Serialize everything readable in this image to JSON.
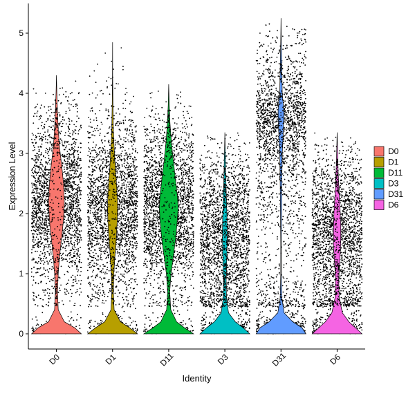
{
  "chart_data": {
    "type": "violin",
    "title": "",
    "xlabel": "Identity",
    "ylabel": "Expression Level",
    "ylim": [
      -0.3,
      5.5
    ],
    "yticks": [
      0,
      1,
      2,
      3,
      4,
      5
    ],
    "grid": false,
    "legend_position": "right",
    "categories": [
      "D0",
      "D1",
      "D11",
      "D3",
      "D31",
      "D6"
    ],
    "series": [
      {
        "name": "D0",
        "color": "#F8766D",
        "max": 4.3,
        "density": [
          [
            0,
            0.95
          ],
          [
            0.1,
            0.7
          ],
          [
            0.2,
            0.3
          ],
          [
            0.4,
            0.07
          ],
          [
            0.7,
            0.04
          ],
          [
            1,
            0.07
          ],
          [
            1.3,
            0.12
          ],
          [
            1.6,
            0.2
          ],
          [
            1.9,
            0.27
          ],
          [
            2.2,
            0.3
          ],
          [
            2.5,
            0.27
          ],
          [
            2.8,
            0.2
          ],
          [
            3.1,
            0.12
          ],
          [
            3.4,
            0.07
          ],
          [
            3.7,
            0.04
          ],
          [
            4,
            0.015
          ],
          [
            4.3,
            0
          ]
        ]
      },
      {
        "name": "D1",
        "color": "#B79F00",
        "max": 4.85,
        "density": [
          [
            0,
            0.95
          ],
          [
            0.1,
            0.65
          ],
          [
            0.2,
            0.3
          ],
          [
            0.4,
            0.06
          ],
          [
            0.7,
            0.03
          ],
          [
            1,
            0.05
          ],
          [
            1.3,
            0.09
          ],
          [
            1.6,
            0.14
          ],
          [
            1.9,
            0.18
          ],
          [
            2.2,
            0.19
          ],
          [
            2.5,
            0.15
          ],
          [
            2.8,
            0.1
          ],
          [
            3.1,
            0.06
          ],
          [
            3.4,
            0.03
          ],
          [
            3.8,
            0.015
          ],
          [
            4.3,
            0.005
          ],
          [
            4.85,
            0
          ]
        ]
      },
      {
        "name": "D11",
        "color": "#00BA38",
        "max": 4.15,
        "density": [
          [
            0,
            0.95
          ],
          [
            0.1,
            0.6
          ],
          [
            0.2,
            0.3
          ],
          [
            0.4,
            0.08
          ],
          [
            0.7,
            0.04
          ],
          [
            1,
            0.09
          ],
          [
            1.3,
            0.18
          ],
          [
            1.6,
            0.27
          ],
          [
            1.9,
            0.33
          ],
          [
            2.1,
            0.36
          ],
          [
            2.3,
            0.33
          ],
          [
            2.6,
            0.25
          ],
          [
            2.9,
            0.17
          ],
          [
            3.2,
            0.1
          ],
          [
            3.5,
            0.05
          ],
          [
            3.8,
            0.02
          ],
          [
            4.15,
            0
          ]
        ]
      },
      {
        "name": "D3",
        "color": "#00BFC4",
        "max": 3.35,
        "density": [
          [
            0,
            0.95
          ],
          [
            0.1,
            0.7
          ],
          [
            0.2,
            0.4
          ],
          [
            0.35,
            0.14
          ],
          [
            0.6,
            0.06
          ],
          [
            0.9,
            0.05
          ],
          [
            1.2,
            0.07
          ],
          [
            1.5,
            0.09
          ],
          [
            1.8,
            0.09
          ],
          [
            2.1,
            0.07
          ],
          [
            2.4,
            0.05
          ],
          [
            2.7,
            0.03
          ],
          [
            3,
            0.015
          ],
          [
            3.35,
            0
          ]
        ]
      },
      {
        "name": "D31",
        "color": "#619CFF",
        "max": 5.25,
        "density": [
          [
            0,
            0.95
          ],
          [
            0.1,
            0.8
          ],
          [
            0.2,
            0.45
          ],
          [
            0.35,
            0.12
          ],
          [
            0.6,
            0.03
          ],
          [
            1,
            0.01
          ],
          [
            1.5,
            0.01
          ],
          [
            2,
            0.02
          ],
          [
            2.5,
            0.03
          ],
          [
            3,
            0.05
          ],
          [
            3.4,
            0.09
          ],
          [
            3.7,
            0.11
          ],
          [
            4,
            0.05
          ],
          [
            4.4,
            0.03
          ],
          [
            4.9,
            0.01
          ],
          [
            5.25,
            0
          ]
        ]
      },
      {
        "name": "D6",
        "color": "#F564E3",
        "max": 3.35,
        "density": [
          [
            0,
            0.95
          ],
          [
            0.1,
            0.7
          ],
          [
            0.2,
            0.45
          ],
          [
            0.35,
            0.2
          ],
          [
            0.6,
            0.08
          ],
          [
            0.9,
            0.06
          ],
          [
            1.2,
            0.1
          ],
          [
            1.5,
            0.14
          ],
          [
            1.8,
            0.14
          ],
          [
            2.1,
            0.11
          ],
          [
            2.4,
            0.07
          ],
          [
            2.7,
            0.04
          ],
          [
            3,
            0.02
          ],
          [
            3.35,
            0
          ]
        ]
      }
    ]
  }
}
